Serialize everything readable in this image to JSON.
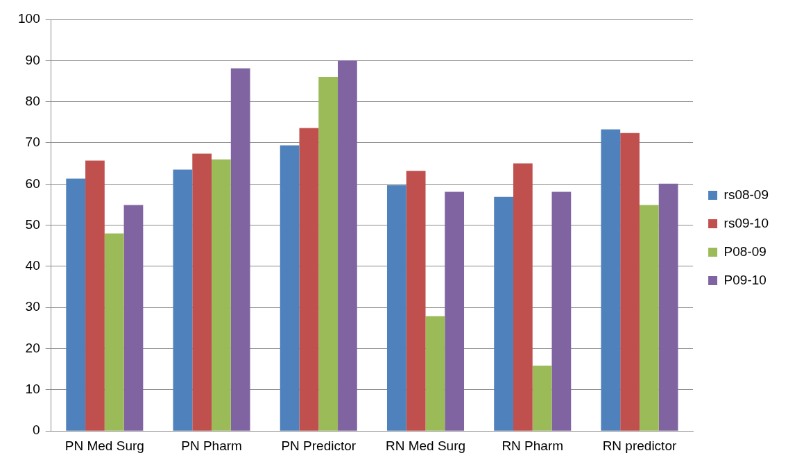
{
  "chart_data": {
    "type": "bar",
    "categories": [
      "PN Med Surg",
      "PN Pharm",
      "PN Predictor",
      "RN Med Surg",
      "RN Pharm",
      "RN predictor"
    ],
    "series": [
      {
        "name": "rs08-09",
        "color": "#4f81bd",
        "values": [
          61.3,
          63.5,
          69.4,
          59.7,
          56.9,
          73.3
        ]
      },
      {
        "name": "rs09-10",
        "color": "#c0504d",
        "values": [
          65.7,
          67.4,
          73.6,
          63.2,
          65.0,
          72.4
        ]
      },
      {
        "name": "P08-09",
        "color": "#9bbb59",
        "values": [
          48.0,
          66.0,
          86.0,
          27.9,
          15.9,
          54.9
        ]
      },
      {
        "name": "P09-10",
        "color": "#8064a2",
        "values": [
          54.9,
          88.1,
          90.0,
          58.1,
          58.1,
          60.1
        ]
      }
    ],
    "ylim": [
      0,
      100
    ],
    "yticks": [
      0,
      10,
      20,
      30,
      40,
      50,
      60,
      70,
      80,
      90,
      100
    ],
    "grid": "y",
    "legend": "right"
  }
}
